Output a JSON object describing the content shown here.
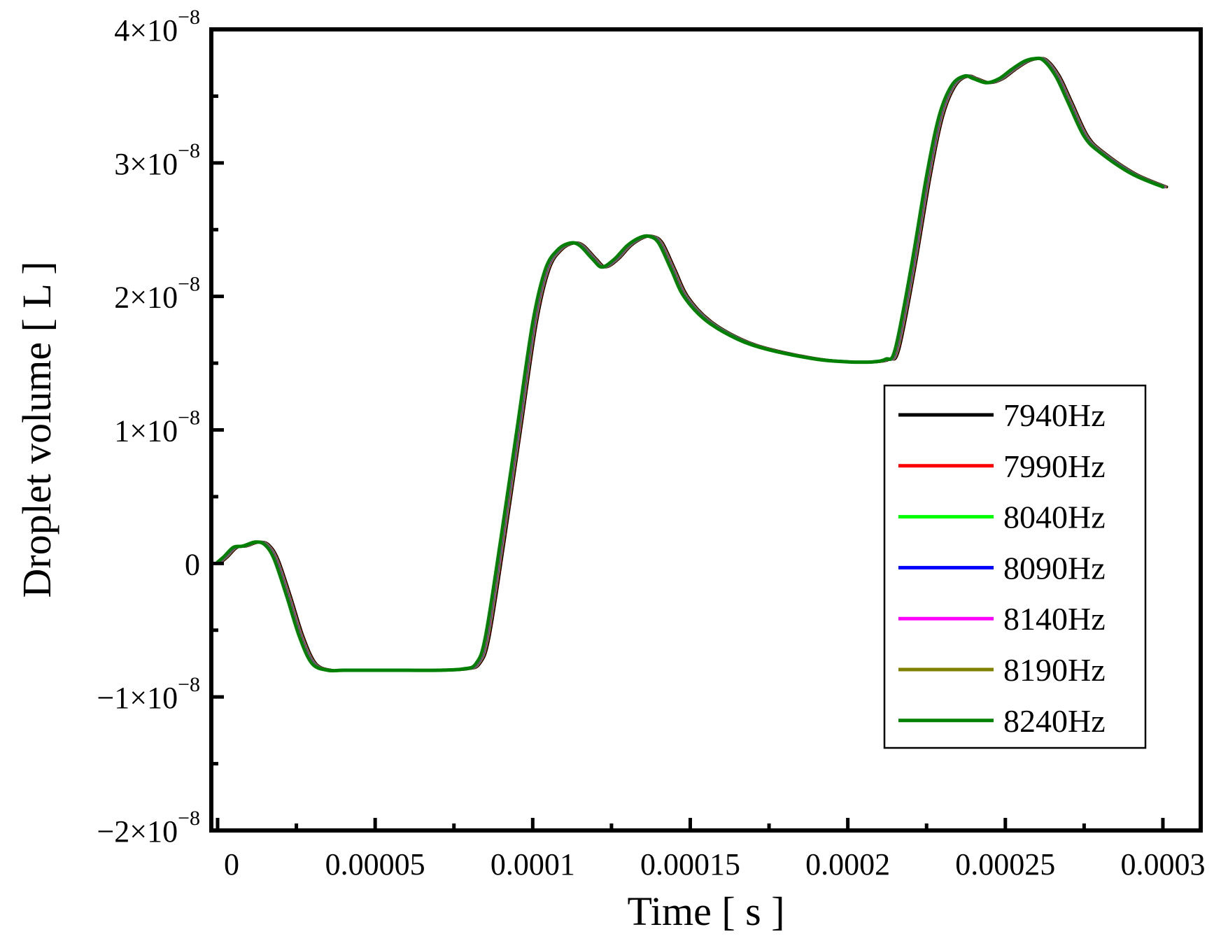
{
  "chart_data": {
    "type": "line",
    "title": "",
    "xlabel": "Time [ s ]",
    "ylabel": "Droplet volume [ L ]",
    "xlim": [
      -2e-06,
      0.000312
    ],
    "ylim": [
      -2e-08,
      4e-08
    ],
    "x_ticks": [
      {
        "value": 0,
        "label": "0"
      },
      {
        "value": 5e-05,
        "label": "0.00005"
      },
      {
        "value": 0.0001,
        "label": "0.0001"
      },
      {
        "value": 0.00015,
        "label": "0.00015"
      },
      {
        "value": 0.0002,
        "label": "0.0002"
      },
      {
        "value": 0.00025,
        "label": "0.00025"
      },
      {
        "value": 0.0003,
        "label": "0.0003"
      }
    ],
    "x_minor_ticks": [
      2.5e-05,
      7.5e-05,
      0.000125,
      0.000175,
      0.000225,
      0.000275
    ],
    "y_ticks": [
      {
        "value": -2e-08,
        "mantissa": "−2×10",
        "exp": "−8"
      },
      {
        "value": -1e-08,
        "mantissa": "−1×10",
        "exp": "−8"
      },
      {
        "value": 0,
        "mantissa": "0",
        "exp": ""
      },
      {
        "value": 1e-08,
        "mantissa": "1×10",
        "exp": "−8"
      },
      {
        "value": 2e-08,
        "mantissa": "2×10",
        "exp": "−8"
      },
      {
        "value": 3e-08,
        "mantissa": "3×10",
        "exp": "−8"
      },
      {
        "value": 4e-08,
        "mantissa": "4×10",
        "exp": "−8"
      }
    ],
    "y_minor_ticks": [
      -1.5e-08,
      -5e-09,
      5e-09,
      1.5e-08,
      2.5e-08,
      3.5e-08
    ],
    "grid": false,
    "legend_position": "right",
    "x": [
      0,
      2e-06,
      5e-06,
      8e-06,
      1.2e-05,
      1.5e-05,
      1.8e-05,
      2.2e-05,
      2.6e-05,
      3e-05,
      3.5e-05,
      4e-05,
      5e-05,
      6e-05,
      7e-05,
      7.8e-05,
      8.2e-05,
      8.5e-05,
      9e-05,
      9.5e-05,
      0.0001,
      0.000104,
      0.000108,
      0.000112,
      0.000115,
      0.000119,
      0.000122,
      0.000126,
      0.00013,
      0.000134,
      0.000137,
      0.00014,
      0.000144,
      0.000148,
      0.000155,
      0.000165,
      0.000175,
      0.00019,
      0.0002,
      0.000208,
      0.000212,
      0.000215,
      0.00022,
      0.000225,
      0.000229,
      0.000233,
      0.000237,
      0.00024,
      0.000244,
      0.000248,
      0.000252,
      0.000256,
      0.000259,
      0.000262,
      0.000266,
      0.00027,
      0.000275,
      0.00028,
      0.00029,
      0.0003
    ],
    "series": [
      {
        "name": "7940Hz",
        "color": "#000000",
        "dx": 1.2e-06,
        "values": [
          1e-10,
          5e-10,
          1.2e-09,
          1.3e-09,
          1.6e-09,
          1.4e-09,
          3e-10,
          -2.5e-09,
          -5.5e-09,
          -7.5e-09,
          -8e-09,
          -8e-09,
          -8e-09,
          -8e-09,
          -8e-09,
          -7.9e-09,
          -7.5e-09,
          -5.5e-09,
          2e-09,
          1e-08,
          1.8e-08,
          2.2e-08,
          2.35e-08,
          2.4e-08,
          2.38e-08,
          2.28e-08,
          2.22e-08,
          2.28e-08,
          2.38e-08,
          2.44e-08,
          2.45e-08,
          2.4e-08,
          2.2e-08,
          2e-08,
          1.82e-08,
          1.68e-08,
          1.6e-08,
          1.53e-08,
          1.51e-08,
          1.51e-08,
          1.53e-08,
          1.6e-08,
          2.2e-08,
          2.9e-08,
          3.35e-08,
          3.58e-08,
          3.65e-08,
          3.63e-08,
          3.6e-08,
          3.63e-08,
          3.7e-08,
          3.76e-08,
          3.78e-08,
          3.77e-08,
          3.65e-08,
          3.45e-08,
          3.2e-08,
          3.08e-08,
          2.92e-08,
          2.82e-08
        ]
      },
      {
        "name": "7990Hz",
        "color": "#ff0000",
        "dx": 9e-07,
        "values": [
          1e-10,
          5e-10,
          1.2e-09,
          1.3e-09,
          1.6e-09,
          1.4e-09,
          3e-10,
          -2.5e-09,
          -5.5e-09,
          -7.5e-09,
          -8e-09,
          -8e-09,
          -8e-09,
          -8e-09,
          -8e-09,
          -7.9e-09,
          -7.5e-09,
          -5.5e-09,
          2e-09,
          1e-08,
          1.8e-08,
          2.2e-08,
          2.35e-08,
          2.4e-08,
          2.38e-08,
          2.28e-08,
          2.22e-08,
          2.28e-08,
          2.38e-08,
          2.44e-08,
          2.45e-08,
          2.4e-08,
          2.2e-08,
          2e-08,
          1.82e-08,
          1.68e-08,
          1.6e-08,
          1.53e-08,
          1.51e-08,
          1.51e-08,
          1.53e-08,
          1.6e-08,
          2.2e-08,
          2.9e-08,
          3.35e-08,
          3.58e-08,
          3.65e-08,
          3.63e-08,
          3.6e-08,
          3.63e-08,
          3.7e-08,
          3.76e-08,
          3.78e-08,
          3.77e-08,
          3.65e-08,
          3.45e-08,
          3.2e-08,
          3.08e-08,
          2.92e-08,
          2.82e-08
        ]
      },
      {
        "name": "8040Hz",
        "color": "#00ff00",
        "dx": 7e-07,
        "values": [
          1e-10,
          5e-10,
          1.2e-09,
          1.3e-09,
          1.6e-09,
          1.4e-09,
          3e-10,
          -2.5e-09,
          -5.5e-09,
          -7.5e-09,
          -8e-09,
          -8e-09,
          -8e-09,
          -8e-09,
          -8e-09,
          -7.9e-09,
          -7.5e-09,
          -5.5e-09,
          2e-09,
          1e-08,
          1.8e-08,
          2.2e-08,
          2.35e-08,
          2.4e-08,
          2.38e-08,
          2.28e-08,
          2.22e-08,
          2.28e-08,
          2.38e-08,
          2.44e-08,
          2.45e-08,
          2.4e-08,
          2.2e-08,
          2e-08,
          1.82e-08,
          1.68e-08,
          1.6e-08,
          1.53e-08,
          1.51e-08,
          1.51e-08,
          1.53e-08,
          1.6e-08,
          2.2e-08,
          2.9e-08,
          3.35e-08,
          3.58e-08,
          3.65e-08,
          3.63e-08,
          3.6e-08,
          3.63e-08,
          3.7e-08,
          3.76e-08,
          3.78e-08,
          3.77e-08,
          3.65e-08,
          3.45e-08,
          3.2e-08,
          3.08e-08,
          2.92e-08,
          2.82e-08
        ]
      },
      {
        "name": "8090Hz",
        "color": "#0000ff",
        "dx": 5e-07,
        "values": [
          1e-10,
          5e-10,
          1.2e-09,
          1.3e-09,
          1.6e-09,
          1.4e-09,
          3e-10,
          -2.5e-09,
          -5.5e-09,
          -7.5e-09,
          -8e-09,
          -8e-09,
          -8e-09,
          -8e-09,
          -8e-09,
          -7.9e-09,
          -7.5e-09,
          -5.5e-09,
          2e-09,
          1e-08,
          1.8e-08,
          2.2e-08,
          2.35e-08,
          2.4e-08,
          2.38e-08,
          2.28e-08,
          2.22e-08,
          2.28e-08,
          2.38e-08,
          2.44e-08,
          2.45e-08,
          2.4e-08,
          2.2e-08,
          2e-08,
          1.82e-08,
          1.68e-08,
          1.6e-08,
          1.53e-08,
          1.51e-08,
          1.51e-08,
          1.53e-08,
          1.6e-08,
          2.2e-08,
          2.9e-08,
          3.35e-08,
          3.58e-08,
          3.65e-08,
          3.63e-08,
          3.6e-08,
          3.63e-08,
          3.7e-08,
          3.76e-08,
          3.78e-08,
          3.77e-08,
          3.65e-08,
          3.45e-08,
          3.2e-08,
          3.08e-08,
          2.92e-08,
          2.82e-08
        ]
      },
      {
        "name": "8140Hz",
        "color": "#ff00ff",
        "dx": 4e-07,
        "values": [
          1e-10,
          5e-10,
          1.2e-09,
          1.3e-09,
          1.6e-09,
          1.4e-09,
          3e-10,
          -2.5e-09,
          -5.5e-09,
          -7.5e-09,
          -8e-09,
          -8e-09,
          -8e-09,
          -8e-09,
          -8e-09,
          -7.9e-09,
          -7.5e-09,
          -5.5e-09,
          2e-09,
          1e-08,
          1.8e-08,
          2.2e-08,
          2.35e-08,
          2.4e-08,
          2.38e-08,
          2.28e-08,
          2.22e-08,
          2.28e-08,
          2.38e-08,
          2.44e-08,
          2.45e-08,
          2.4e-08,
          2.2e-08,
          2e-08,
          1.82e-08,
          1.68e-08,
          1.6e-08,
          1.53e-08,
          1.51e-08,
          1.51e-08,
          1.53e-08,
          1.6e-08,
          2.2e-08,
          2.9e-08,
          3.35e-08,
          3.58e-08,
          3.65e-08,
          3.63e-08,
          3.6e-08,
          3.63e-08,
          3.7e-08,
          3.76e-08,
          3.78e-08,
          3.77e-08,
          3.65e-08,
          3.45e-08,
          3.2e-08,
          3.08e-08,
          2.92e-08,
          2.82e-08
        ]
      },
      {
        "name": "8190Hz",
        "color": "#808000",
        "dx": 2e-07,
        "values": [
          1e-10,
          5e-10,
          1.2e-09,
          1.3e-09,
          1.6e-09,
          1.4e-09,
          3e-10,
          -2.5e-09,
          -5.5e-09,
          -7.5e-09,
          -8e-09,
          -8e-09,
          -8e-09,
          -8e-09,
          -8e-09,
          -7.9e-09,
          -7.5e-09,
          -5.5e-09,
          2e-09,
          1e-08,
          1.8e-08,
          2.2e-08,
          2.35e-08,
          2.4e-08,
          2.38e-08,
          2.28e-08,
          2.22e-08,
          2.28e-08,
          2.38e-08,
          2.44e-08,
          2.45e-08,
          2.4e-08,
          2.2e-08,
          2e-08,
          1.82e-08,
          1.68e-08,
          1.6e-08,
          1.53e-08,
          1.51e-08,
          1.51e-08,
          1.53e-08,
          1.6e-08,
          2.2e-08,
          2.9e-08,
          3.35e-08,
          3.58e-08,
          3.65e-08,
          3.63e-08,
          3.6e-08,
          3.63e-08,
          3.7e-08,
          3.76e-08,
          3.78e-08,
          3.77e-08,
          3.65e-08,
          3.45e-08,
          3.2e-08,
          3.08e-08,
          2.92e-08,
          2.82e-08
        ]
      },
      {
        "name": "8240Hz",
        "color": "#008000",
        "dx": 0,
        "values": [
          1e-10,
          5e-10,
          1.2e-09,
          1.3e-09,
          1.6e-09,
          1.4e-09,
          3e-10,
          -2.5e-09,
          -5.5e-09,
          -7.5e-09,
          -8e-09,
          -8e-09,
          -8e-09,
          -8e-09,
          -8e-09,
          -7.9e-09,
          -7.5e-09,
          -5.5e-09,
          2e-09,
          1e-08,
          1.8e-08,
          2.2e-08,
          2.35e-08,
          2.4e-08,
          2.38e-08,
          2.28e-08,
          2.22e-08,
          2.28e-08,
          2.38e-08,
          2.44e-08,
          2.45e-08,
          2.4e-08,
          2.2e-08,
          2e-08,
          1.82e-08,
          1.68e-08,
          1.6e-08,
          1.53e-08,
          1.51e-08,
          1.51e-08,
          1.53e-08,
          1.6e-08,
          2.2e-08,
          2.9e-08,
          3.35e-08,
          3.58e-08,
          3.65e-08,
          3.63e-08,
          3.6e-08,
          3.63e-08,
          3.7e-08,
          3.76e-08,
          3.78e-08,
          3.77e-08,
          3.65e-08,
          3.45e-08,
          3.2e-08,
          3.08e-08,
          2.92e-08,
          2.82e-08
        ]
      }
    ]
  }
}
